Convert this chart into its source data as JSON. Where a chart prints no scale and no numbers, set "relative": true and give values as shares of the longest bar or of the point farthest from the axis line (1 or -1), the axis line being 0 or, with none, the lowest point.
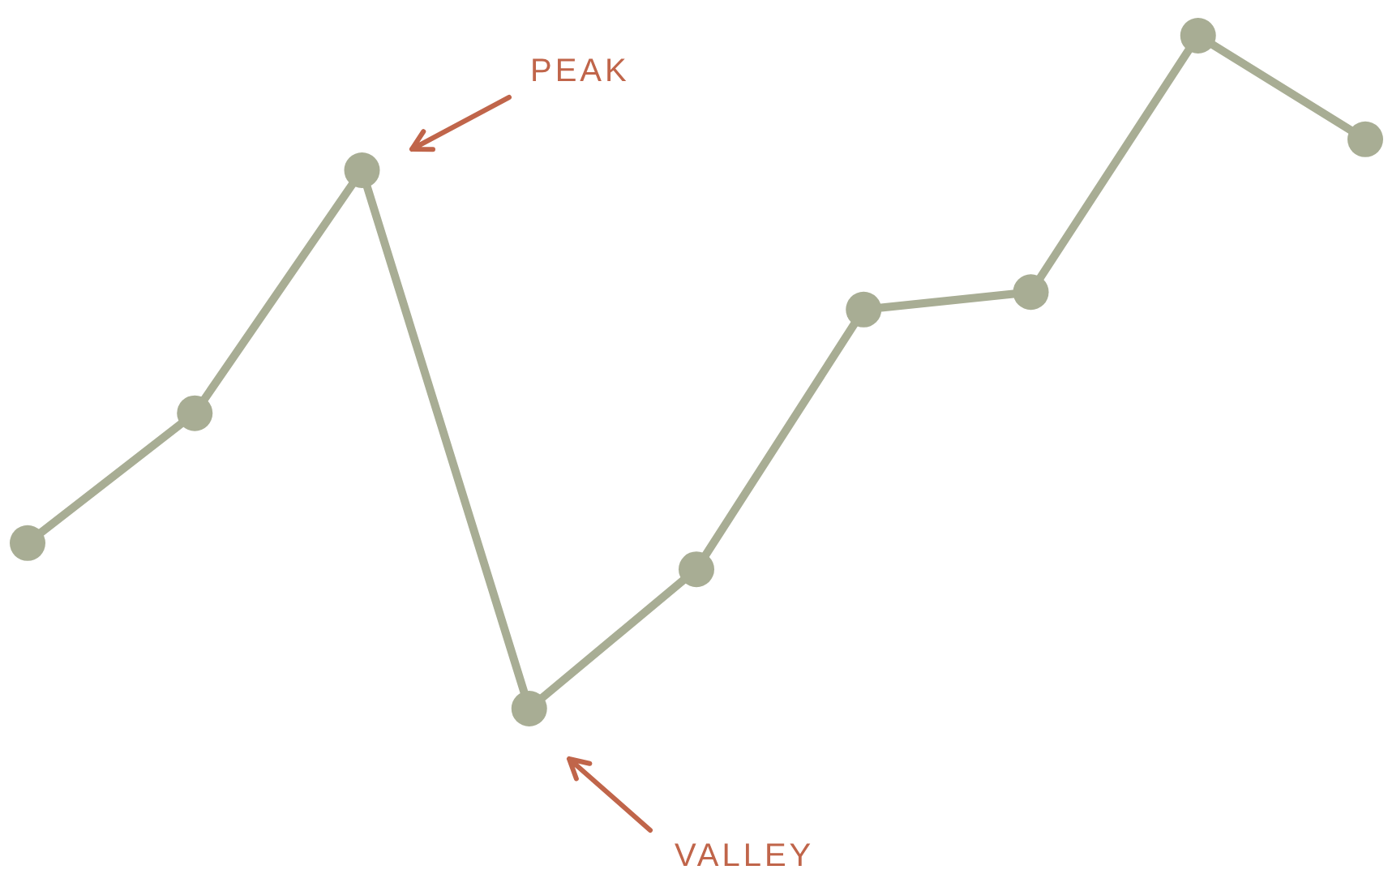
{
  "chart_data": {
    "type": "line",
    "relative": true,
    "categories": [
      null,
      null,
      null,
      null,
      null,
      null,
      null,
      null,
      null
    ],
    "series": [
      {
        "color": "#a8ad94",
        "values": [
          0.246,
          0.439,
          0.8,
          0,
          0.207,
          0.593,
          0.619,
          1,
          0.846
        ]
      }
    ],
    "marker": "circle",
    "line_style": "solid",
    "legend": false,
    "annotations": [
      "PEAK",
      "VALLEY"
    ]
  }
}
